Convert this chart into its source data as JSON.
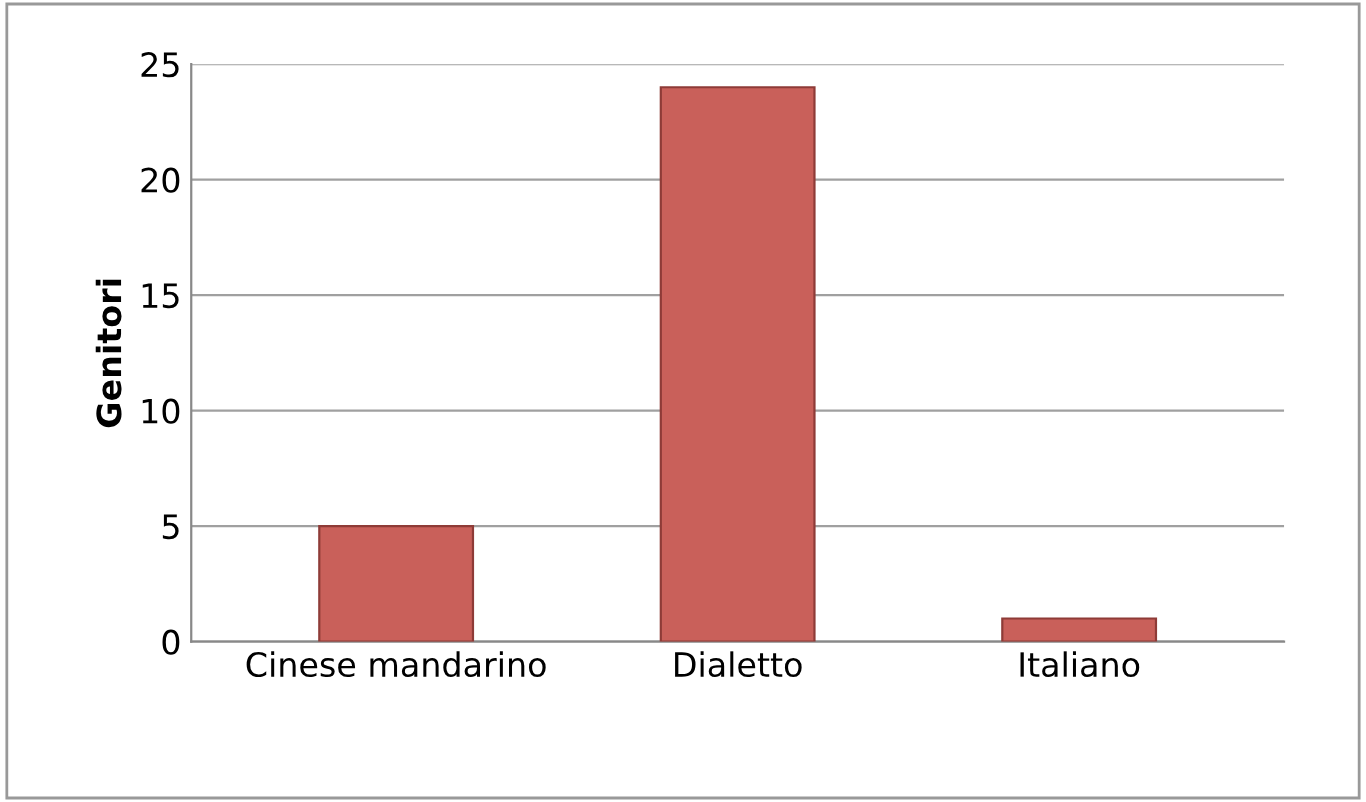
{
  "chart_data": {
    "type": "bar",
    "ylabel": "Genitori",
    "categories": [
      "Cinese mandarino",
      "Dialetto",
      "Italiano"
    ],
    "values": [
      5,
      24,
      1
    ],
    "color": "#c9605a",
    "ylim": [
      0,
      25
    ],
    "yticks": [
      0,
      5,
      10,
      15,
      20,
      25
    ],
    "grid": "y"
  }
}
